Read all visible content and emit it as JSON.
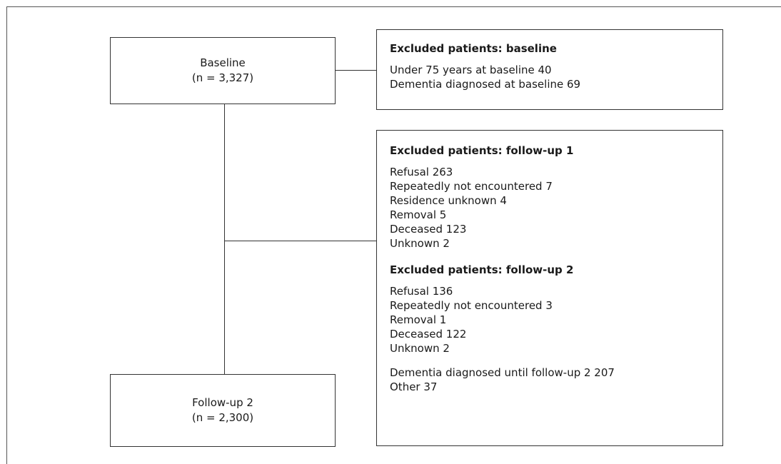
{
  "nodes": {
    "baseline": {
      "title": "Baseline",
      "count": "(n = 3,327)"
    },
    "followup2": {
      "title": "Follow-up 2",
      "count": "(n = 2,300)"
    }
  },
  "excluded_baseline": {
    "heading": "Excluded patients: baseline",
    "items": [
      "Under 75 years at baseline 40",
      "Dementia diagnosed at baseline 69"
    ]
  },
  "excluded_followup1": {
    "heading": "Excluded patients: follow-up 1",
    "items": [
      "Refusal 263",
      "Repeatedly not encountered 7",
      "Residence unknown 4",
      "Removal 5",
      "Deceased 123",
      "Unknown 2"
    ]
  },
  "excluded_followup2": {
    "heading": "Excluded patients: follow-up 2",
    "items": [
      "Refusal 136",
      "Repeatedly not encountered 3",
      "Removal 1",
      "Deceased 122",
      "Unknown 2"
    ],
    "extra_items": [
      "Dementia diagnosed until follow-up 2 207",
      "Other 37"
    ]
  }
}
